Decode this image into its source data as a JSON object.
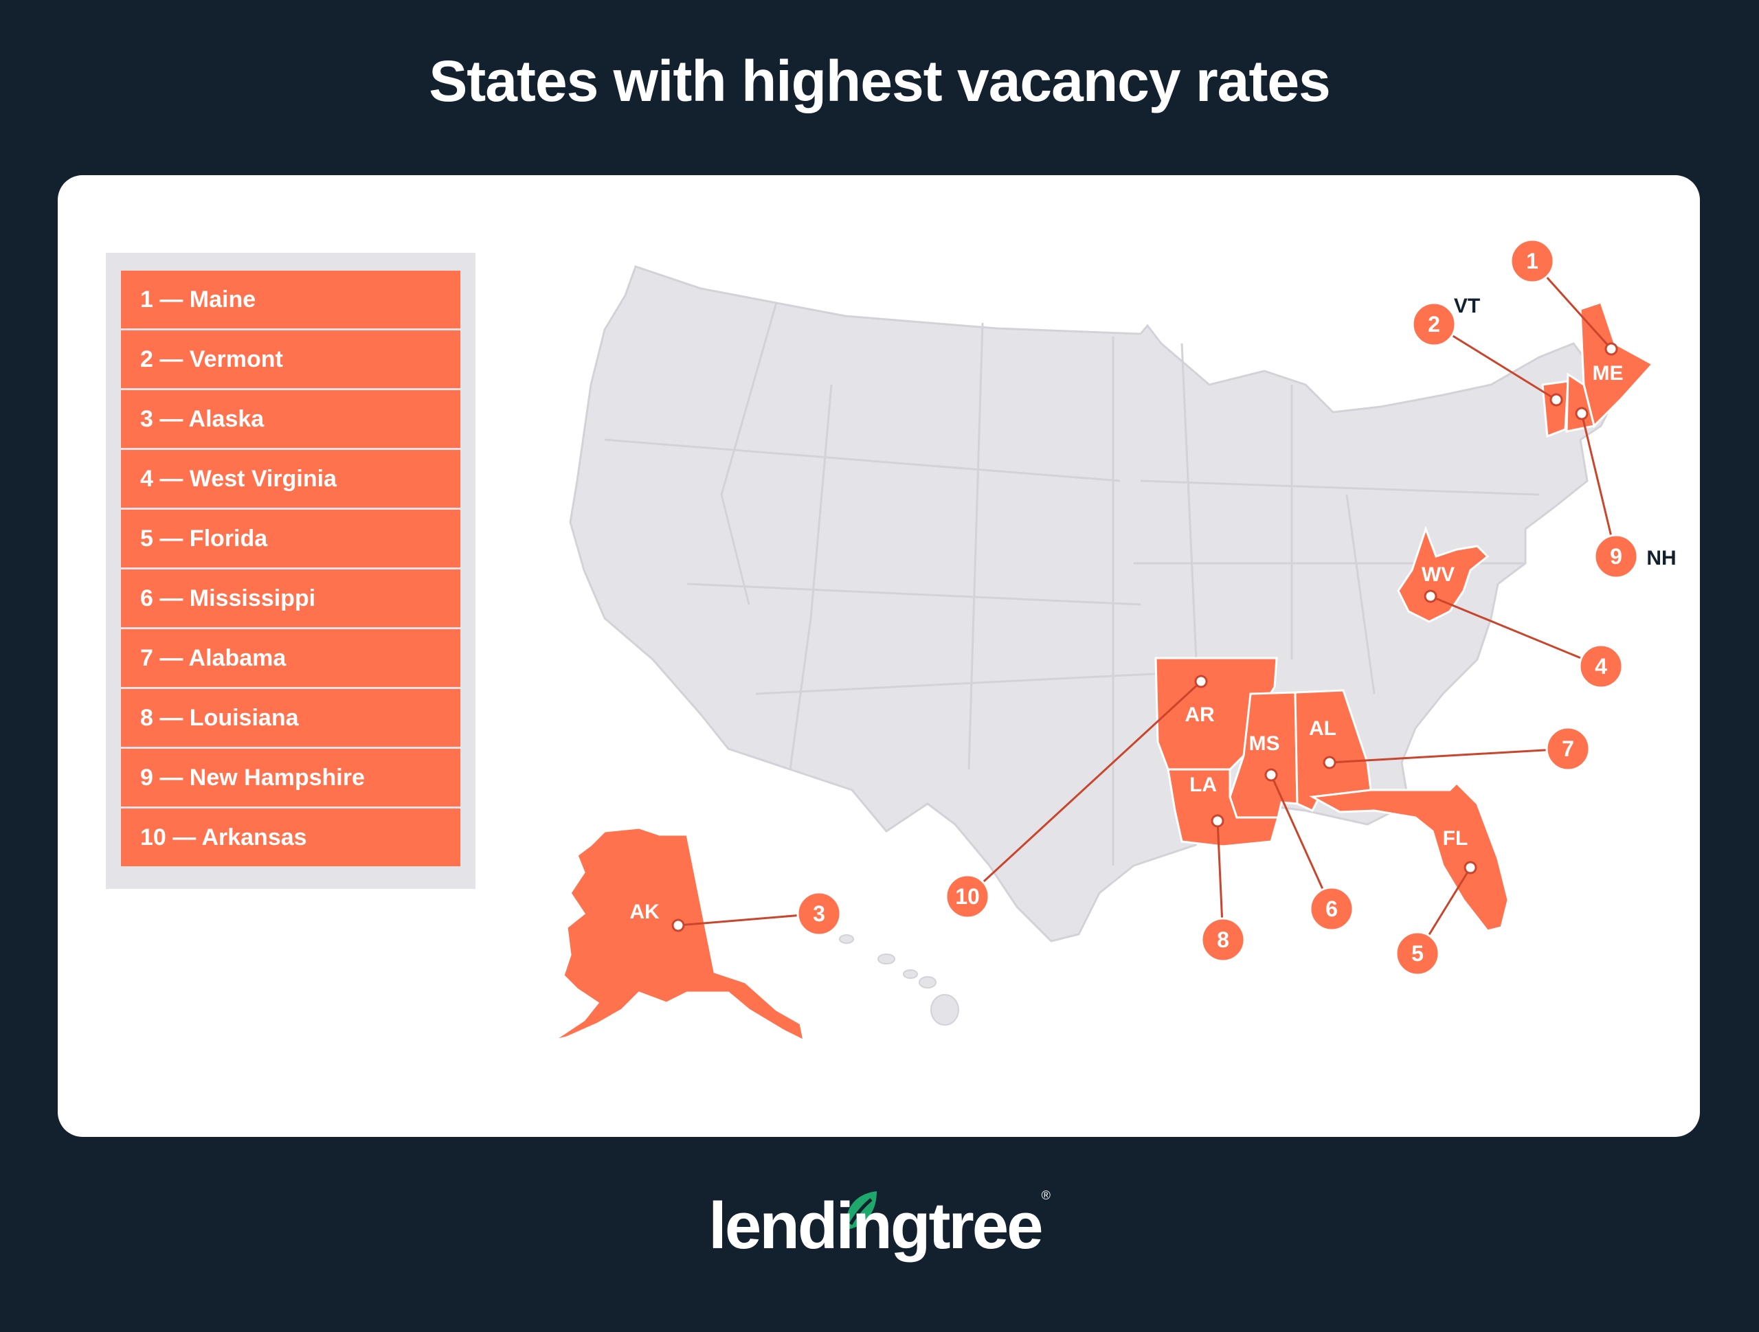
{
  "title": "States with highest vacancy rates",
  "legend": [
    {
      "rank": 1,
      "label": "1 — Maine"
    },
    {
      "rank": 2,
      "label": "2 — Vermont"
    },
    {
      "rank": 3,
      "label": "3 — Alaska"
    },
    {
      "rank": 4,
      "label": "4 — West Virginia"
    },
    {
      "rank": 5,
      "label": "5 — Florida"
    },
    {
      "rank": 6,
      "label": "6 — Mississippi"
    },
    {
      "rank": 7,
      "label": "7 — Alabama"
    },
    {
      "rank": 8,
      "label": "8 — Louisiana"
    },
    {
      "rank": 9,
      "label": "9 — New Hampshire"
    },
    {
      "rank": 10,
      "label": "10 — Arkansas"
    }
  ],
  "map": {
    "state_labels": [
      "ME",
      "VT",
      "NH",
      "WV",
      "AR",
      "MS",
      "AL",
      "LA",
      "FL",
      "AK"
    ],
    "markers": [
      "1",
      "2",
      "3",
      "4",
      "5",
      "6",
      "7",
      "8",
      "9",
      "10"
    ]
  },
  "colors": {
    "background": "#13202e",
    "highlight": "#ff724d",
    "base_state": "#e4e4e8",
    "leader": "#c9452c"
  },
  "logo": {
    "text": "lendingtree",
    "reg": "®"
  }
}
